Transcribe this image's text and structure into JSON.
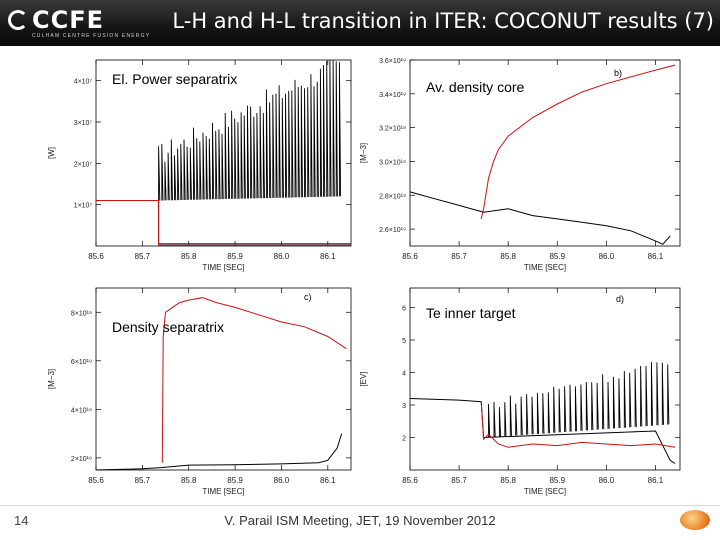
{
  "header": {
    "logo_text": "CCFE",
    "logo_subtext": "CULHAM CENTRE FUSION ENERGY",
    "title": "L-H and H-L transition in ITER: COCONUT results (7)"
  },
  "footer": {
    "slide_number": "14",
    "text": "V. Parail  ISM Meeting, JET, 19 November 2012"
  },
  "colors": {
    "black_series": "#000000",
    "red_series": "#cc1010",
    "header_bg": "#111111"
  },
  "chart_data": [
    {
      "id": "a",
      "type": "line",
      "title": "El. Power separatrix",
      "panel_letter": "",
      "xlabel": "TIME  [SEC]",
      "ylabel": "[W]",
      "xlim": [
        85.6,
        86.15
      ],
      "ylim": [
        0,
        45000000.0
      ],
      "xticks": [
        85.6,
        85.7,
        85.8,
        85.9,
        86.0,
        86.1
      ],
      "xtick_labels": [
        "85.6",
        "85.7",
        "85.8",
        "85.9",
        "86.0",
        "86.1"
      ],
      "yticks": [
        10000000.0,
        20000000.0,
        30000000.0,
        40000000.0
      ],
      "ytick_labels": [
        "1×10⁷",
        "2×10⁷",
        "3×10⁷",
        "4×10⁷"
      ],
      "series": [
        {
          "name": "baseline",
          "color": "#000000",
          "kind": "step",
          "x": [
            85.6,
            85.735,
            85.735,
            86.15
          ],
          "y": [
            11000000.0,
            11000000.0,
            500000.0,
            500000.0
          ]
        },
        {
          "name": "ELM spikes",
          "color": "#000000",
          "kind": "spikes",
          "x_start": 85.735,
          "x_end": 86.125,
          "n": 58,
          "base": [
            11000000.0,
            12000000.0
          ],
          "peak": [
            22000000.0,
            44000000.0
          ]
        },
        {
          "name": "red",
          "color": "#cc1010",
          "x": [
            85.6,
            85.735,
            85.735,
            86.15
          ],
          "y": [
            11000000.0,
            11000000.0,
            200000.0,
            200000.0
          ]
        }
      ]
    },
    {
      "id": "b",
      "type": "line",
      "title": "Av. density core",
      "panel_letter": "b)",
      "xlabel": "TIME  [SEC]",
      "ylabel": "[M−3]",
      "xlim": [
        85.6,
        86.15
      ],
      "ylim": [
        2.5e+19,
        3.6e+19
      ],
      "xticks": [
        85.6,
        85.7,
        85.8,
        85.9,
        86.0,
        86.1
      ],
      "xtick_labels": [
        "85.6",
        "85.7",
        "85.8",
        "85.9",
        "86.0",
        "86.1"
      ],
      "yticks": [
        2.6e+19,
        2.8e+19,
        3e+19,
        3.2e+19,
        3.4e+19,
        3.6e+19
      ],
      "ytick_labels": [
        "2.6×10¹⁹",
        "2.8×10¹⁹",
        "3.0×10¹⁹",
        "3.2×10¹⁹",
        "3.4×10¹⁹",
        "3.6×10¹⁹"
      ],
      "series": [
        {
          "name": "black",
          "color": "#000000",
          "x": [
            85.6,
            85.65,
            85.7,
            85.75,
            85.8,
            85.85,
            85.9,
            85.95,
            86.0,
            86.05,
            86.1,
            86.115,
            86.13
          ],
          "y": [
            2.82e+19,
            2.78e+19,
            2.74e+19,
            2.7e+19,
            2.72e+19,
            2.68e+19,
            2.66e+19,
            2.64e+19,
            2.62e+19,
            2.59e+19,
            2.53e+19,
            2.51e+19,
            2.56e+19
          ]
        },
        {
          "name": "red",
          "color": "#cc1010",
          "x": [
            85.745,
            85.75,
            85.76,
            85.77,
            85.78,
            85.8,
            85.85,
            85.9,
            85.95,
            86.0,
            86.05,
            86.1,
            86.14
          ],
          "y": [
            2.66e+19,
            2.72e+19,
            2.9e+19,
            3e+19,
            3.07e+19,
            3.15e+19,
            3.26e+19,
            3.34e+19,
            3.41e+19,
            3.46e+19,
            3.5e+19,
            3.54e+19,
            3.57e+19
          ]
        }
      ]
    },
    {
      "id": "c",
      "type": "line",
      "title": "Density separatrix",
      "panel_letter": "c)",
      "xlabel": "TIME  [SEC]",
      "ylabel": "[M−3]",
      "xlim": [
        85.6,
        86.15
      ],
      "ylim": [
        1.5e+19,
        9e+19
      ],
      "xticks": [
        85.6,
        85.7,
        85.8,
        85.9,
        86.0,
        86.1
      ],
      "xtick_labels": [
        "85.6",
        "85.7",
        "85.8",
        "85.9",
        "86.0",
        "86.1"
      ],
      "yticks": [
        2e+19,
        4e+19,
        6e+19,
        8e+19
      ],
      "ytick_labels": [
        "2×10¹⁹",
        "4×10¹⁹",
        "6×10¹⁹",
        "8×10¹⁹"
      ],
      "series": [
        {
          "name": "black",
          "color": "#000000",
          "x": [
            85.6,
            85.7,
            85.74,
            85.8,
            85.9,
            86.0,
            86.08,
            86.1,
            86.12,
            86.13
          ],
          "y": [
            1.5e+19,
            1.55e+19,
            1.6e+19,
            1.7e+19,
            1.72e+19,
            1.75e+19,
            1.8e+19,
            1.9e+19,
            2.4e+19,
            3e+19
          ]
        },
        {
          "name": "red",
          "color": "#cc1010",
          "x": [
            85.743,
            85.745,
            85.75,
            85.78,
            85.8,
            85.83,
            85.86,
            85.9,
            85.95,
            86.0,
            86.05,
            86.1,
            86.14
          ],
          "y": [
            1.8e+19,
            7e+19,
            8e+19,
            8.4e+19,
            8.5e+19,
            8.6e+19,
            8.4e+19,
            8.2e+19,
            7.9e+19,
            7.6e+19,
            7.4e+19,
            7e+19,
            6.5e+19
          ]
        }
      ]
    },
    {
      "id": "d",
      "type": "line",
      "title": "Te inner target",
      "panel_letter": "d)",
      "xlabel": "TIME  [SEC]",
      "ylabel": "[EV]",
      "xlim": [
        85.6,
        86.15
      ],
      "ylim": [
        1,
        6.6
      ],
      "xticks": [
        85.6,
        85.7,
        85.8,
        85.9,
        86.0,
        86.1
      ],
      "xtick_labels": [
        "85.6",
        "85.7",
        "85.8",
        "85.9",
        "86.0",
        "86.1"
      ],
      "yticks": [
        2,
        3,
        4,
        5,
        6
      ],
      "ytick_labels": [
        "2",
        "3",
        "4",
        "5",
        "6"
      ],
      "series": [
        {
          "name": "baseline",
          "color": "#000000",
          "kind": "step",
          "x": [
            85.6,
            85.7,
            85.745,
            85.75,
            86.1,
            86.13,
            86.14
          ],
          "y": [
            3.2,
            3.15,
            3.1,
            2.0,
            2.2,
            1.3,
            1.2
          ]
        },
        {
          "name": "ELM spikes",
          "color": "#000000",
          "kind": "spikes",
          "x_start": 85.76,
          "x_end": 86.125,
          "n": 34,
          "base": [
            2.0,
            2.4
          ],
          "peak": [
            3.0,
            4.3
          ]
        },
        {
          "name": "red",
          "color": "#cc1010",
          "x": [
            85.745,
            85.75,
            85.76,
            85.78,
            85.8,
            85.85,
            85.9,
            85.95,
            86.0,
            86.05,
            86.1,
            86.14
          ],
          "y": [
            3.1,
            1.95,
            2.1,
            1.8,
            1.7,
            1.8,
            1.75,
            1.85,
            1.8,
            1.75,
            1.8,
            1.7
          ]
        }
      ]
    }
  ]
}
